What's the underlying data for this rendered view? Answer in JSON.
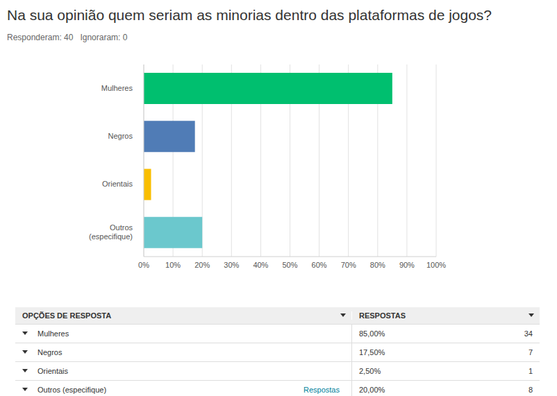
{
  "chart_data": {
    "type": "bar",
    "orientation": "horizontal",
    "title": "Na sua opinião quem seriam as minorias dentro das plataformas de jogos?",
    "subtitle": "Responderam: 40   Ignoraram: 0",
    "categories": [
      "Mulheres",
      "Negros",
      "Orientais",
      "Outros (especifique)"
    ],
    "values": [
      85,
      17.5,
      2.5,
      20
    ],
    "colors": [
      "#00bf6f",
      "#507cb6",
      "#f9be00",
      "#6bc8cd"
    ],
    "xlim": [
      0,
      100
    ],
    "xticks": [
      {
        "value": 0,
        "label": "0%"
      },
      {
        "value": 10,
        "label": "10%"
      },
      {
        "value": 20,
        "label": "20%"
      },
      {
        "value": 30,
        "label": "30%"
      },
      {
        "value": 40,
        "label": "40%"
      },
      {
        "value": 50,
        "label": "50%"
      },
      {
        "value": 60,
        "label": "60%"
      },
      {
        "value": 70,
        "label": "70%"
      },
      {
        "value": 80,
        "label": "80%"
      },
      {
        "value": 90,
        "label": "90%"
      },
      {
        "value": 100,
        "label": "100%"
      }
    ],
    "grid": true
  },
  "table": {
    "headers": [
      "OPÇÕES DE RESPOSTA",
      "RESPOSTAS"
    ],
    "rows": [
      {
        "option": "Mulheres",
        "link": null,
        "percent": "85,00%",
        "count": 34
      },
      {
        "option": "Negros",
        "link": null,
        "percent": "17,50%",
        "count": 7
      },
      {
        "option": "Orientais",
        "link": null,
        "percent": "2,50%",
        "count": 1
      },
      {
        "option": "Outros (especifique)",
        "link": "Respostas",
        "percent": "20,00%",
        "count": 8
      }
    ]
  }
}
